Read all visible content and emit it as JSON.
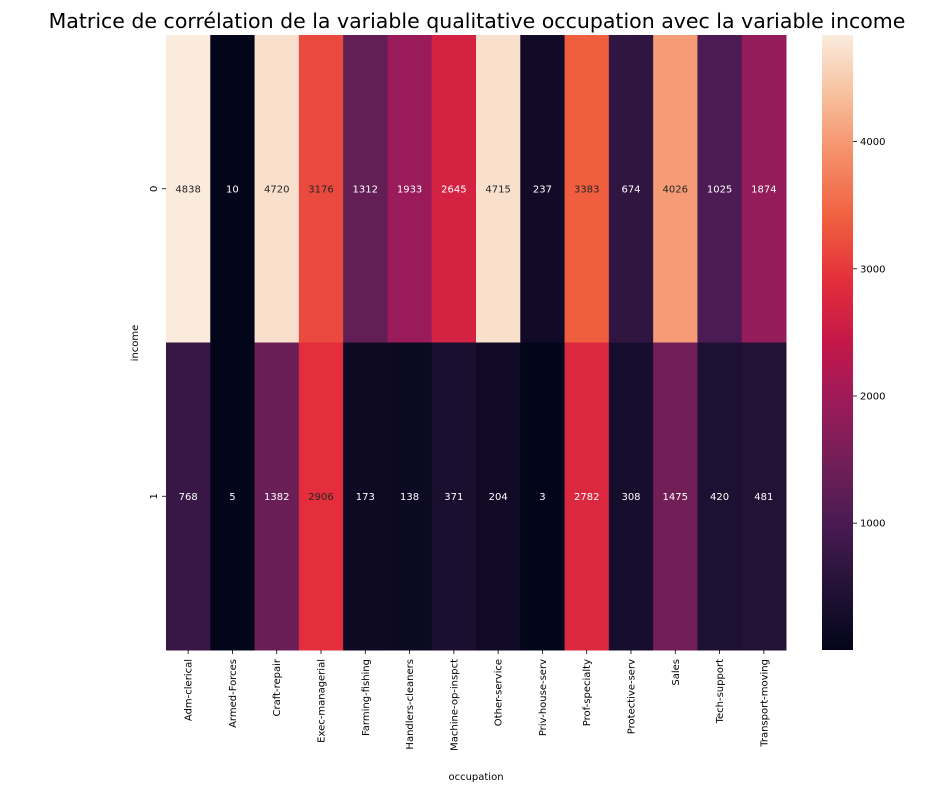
{
  "chart_data": {
    "type": "heatmap",
    "title": "Matrice de corrélation de la variable qualitative occupation avec la variable income",
    "xlabel": "occupation",
    "ylabel": "income",
    "x_categories": [
      "Adm-clerical",
      "Armed-Forces",
      "Craft-repair",
      "Exec-managerial",
      "Farming-fishing",
      "Handlers-cleaners",
      "Machine-op-inspct",
      "Other-service",
      "Priv-house-serv",
      "Prof-specialty",
      "Protective-serv",
      "Sales",
      "Tech-support",
      "Transport-moving"
    ],
    "y_categories": [
      "0",
      "1"
    ],
    "values": [
      [
        4838,
        10,
        4720,
        3176,
        1312,
        1933,
        2645,
        4715,
        237,
        3383,
        674,
        4026,
        1025,
        1874
      ],
      [
        768,
        5,
        1382,
        2906,
        173,
        138,
        371,
        204,
        3,
        2782,
        308,
        1475,
        420,
        481
      ]
    ],
    "colormap": "rocket",
    "vmin": 3,
    "vmax": 4838,
    "colorbar_ticks": [
      1000,
      2000,
      3000,
      4000
    ],
    "annotated": true,
    "grid": false
  }
}
